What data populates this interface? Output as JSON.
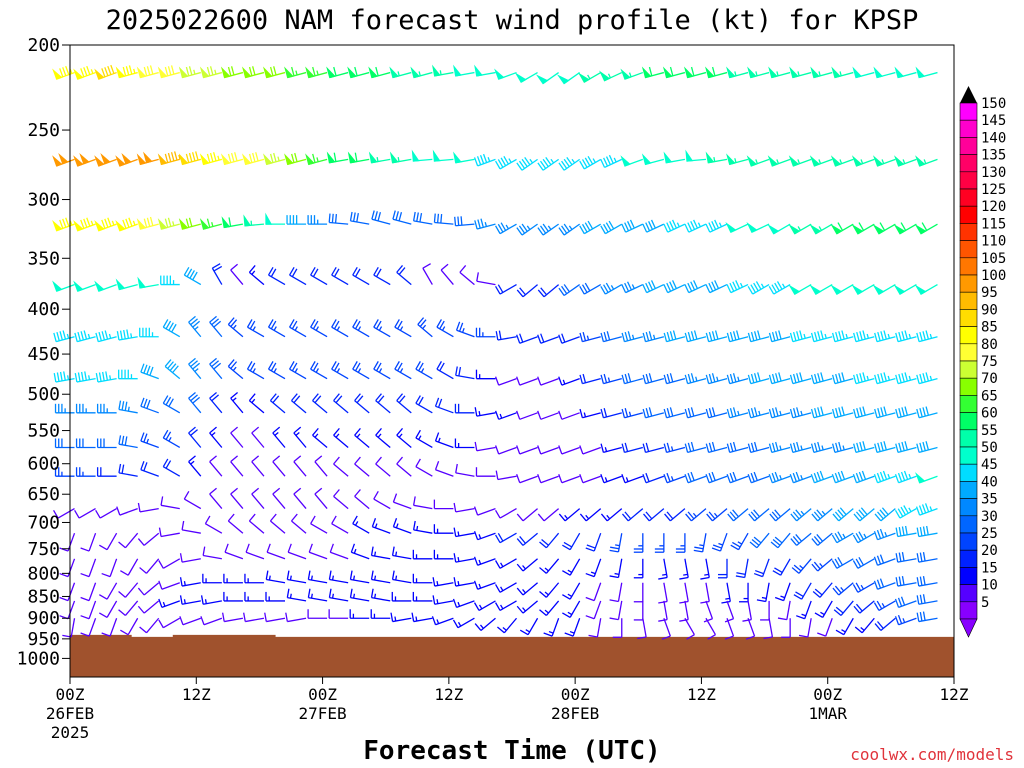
{
  "chart_data": {
    "type": "wind-barb time-height",
    "title": "2025022600 NAM forecast wind profile (kt) for KPSP",
    "xlabel": "Forecast Time (UTC)",
    "ylabel": "",
    "credit": "coolwx.com/models",
    "y_ticks": [
      "200",
      "250",
      "300",
      "350",
      "400",
      "450",
      "500",
      "550",
      "600",
      "650",
      "700",
      "750",
      "800",
      "850",
      "900",
      "950",
      "1000"
    ],
    "y_levels_hPa": [
      200,
      250,
      300,
      350,
      400,
      450,
      500,
      550,
      600,
      650,
      700,
      750,
      800,
      850,
      900,
      950,
      1000
    ],
    "y_scale": "log pressure (hPa), inverted",
    "ylim": [
      1050,
      200
    ],
    "x_ticks": [
      {
        "hour": 0,
        "line1": "00Z",
        "line2": "26FEB",
        "line3": "2025"
      },
      {
        "hour": 12,
        "line1": "12Z",
        "line2": "",
        "line3": ""
      },
      {
        "hour": 24,
        "line1": "00Z",
        "line2": "27FEB",
        "line3": ""
      },
      {
        "hour": 36,
        "line1": "12Z",
        "line2": "",
        "line3": ""
      },
      {
        "hour": 48,
        "line1": "00Z",
        "line2": "28FEB",
        "line3": ""
      },
      {
        "hour": 60,
        "line1": "12Z",
        "line2": "",
        "line3": ""
      },
      {
        "hour": 72,
        "line1": "00Z",
        "line2": "1MAR",
        "line3": ""
      },
      {
        "hour": 84,
        "line1": "12Z",
        "line2": "",
        "line3": ""
      }
    ],
    "xlim_hours": [
      0,
      84
    ],
    "barb_times_hours": [
      1,
      3,
      5,
      7,
      9,
      11,
      13,
      15,
      17,
      19,
      21,
      23,
      25,
      27,
      29,
      31,
      33,
      35,
      37,
      39,
      41,
      43,
      45,
      47,
      49,
      51,
      53,
      55,
      57,
      59,
      61,
      63,
      65,
      67,
      69,
      71,
      73,
      75,
      77,
      79,
      81,
      83
    ],
    "barb_levels_hPa": [
      215,
      270,
      320,
      375,
      430,
      480,
      525,
      575,
      620,
      675,
      720,
      770,
      820,
      860,
      900
    ],
    "speed_knots_by_level": [
      [
        86,
        86,
        88,
        84,
        82,
        80,
        76,
        74,
        72,
        70,
        68,
        66,
        64,
        62,
        60,
        58,
        56,
        55,
        54,
        52,
        50,
        50,
        50,
        50,
        52,
        54,
        56,
        56,
        58,
        58,
        58,
        58,
        56,
        56,
        56,
        54,
        54,
        54,
        52,
        52,
        52,
        52
      ],
      [
        98,
        98,
        100,
        100,
        98,
        94,
        90,
        86,
        82,
        78,
        74,
        70,
        66,
        62,
        60,
        56,
        54,
        52,
        50,
        48,
        46,
        44,
        44,
        44,
        44,
        46,
        46,
        48,
        48,
        50,
        52,
        54,
        54,
        56,
        56,
        56,
        56,
        56,
        56,
        56,
        56,
        56
      ],
      [
        84,
        84,
        84,
        84,
        80,
        76,
        70,
        64,
        58,
        54,
        48,
        42,
        36,
        32,
        30,
        30,
        30,
        30,
        30,
        32,
        34,
        36,
        36,
        36,
        36,
        38,
        40,
        40,
        42,
        44,
        44,
        46,
        48,
        50,
        52,
        54,
        56,
        58,
        60,
        60,
        60,
        60
      ],
      [
        50,
        50,
        50,
        50,
        48,
        46,
        40,
        20,
        10,
        15,
        20,
        20,
        20,
        20,
        20,
        20,
        20,
        10,
        12,
        10,
        10,
        20,
        20,
        20,
        30,
        30,
        34,
        36,
        38,
        40,
        40,
        42,
        44,
        44,
        46,
        48,
        48,
        50,
        50,
        50,
        52,
        52
      ],
      [
        46,
        46,
        46,
        44,
        44,
        40,
        36,
        30,
        25,
        25,
        25,
        25,
        25,
        25,
        25,
        25,
        25,
        25,
        25,
        25,
        25,
        20,
        20,
        20,
        20,
        25,
        30,
        34,
        36,
        38,
        38,
        40,
        40,
        42,
        42,
        44,
        44,
        44,
        46,
        46,
        46,
        46
      ],
      [
        44,
        44,
        44,
        44,
        42,
        40,
        36,
        30,
        26,
        25,
        25,
        25,
        25,
        25,
        25,
        25,
        25,
        25,
        20,
        20,
        15,
        10,
        10,
        10,
        15,
        20,
        25,
        28,
        30,
        32,
        34,
        36,
        36,
        38,
        40,
        40,
        42,
        42,
        44,
        44,
        46,
        46
      ],
      [
        34,
        34,
        34,
        34,
        32,
        30,
        28,
        20,
        15,
        15,
        20,
        20,
        20,
        20,
        20,
        20,
        20,
        20,
        20,
        20,
        15,
        15,
        10,
        10,
        10,
        15,
        20,
        25,
        28,
        30,
        30,
        32,
        34,
        34,
        36,
        36,
        38,
        38,
        40,
        40,
        42,
        42
      ],
      [
        28,
        28,
        28,
        28,
        26,
        24,
        20,
        15,
        10,
        10,
        15,
        15,
        15,
        15,
        15,
        15,
        15,
        15,
        15,
        15,
        10,
        10,
        10,
        10,
        10,
        10,
        15,
        20,
        22,
        25,
        28,
        30,
        30,
        32,
        34,
        34,
        36,
        36,
        38,
        38,
        40,
        40
      ],
      [
        24,
        24,
        22,
        22,
        20,
        18,
        15,
        10,
        10,
        10,
        10,
        10,
        10,
        10,
        10,
        10,
        10,
        10,
        10,
        10,
        10,
        10,
        10,
        10,
        10,
        10,
        15,
        15,
        20,
        25,
        28,
        30,
        30,
        32,
        34,
        36,
        38,
        40,
        42,
        44,
        46,
        48
      ],
      [
        10,
        10,
        10,
        10,
        10,
        10,
        10,
        10,
        10,
        10,
        10,
        10,
        10,
        10,
        10,
        10,
        10,
        10,
        10,
        10,
        10,
        10,
        10,
        10,
        15,
        15,
        15,
        20,
        20,
        20,
        25,
        25,
        30,
        30,
        32,
        34,
        36,
        38,
        40,
        42,
        44,
        46
      ],
      [
        10,
        10,
        10,
        10,
        10,
        10,
        10,
        10,
        10,
        10,
        10,
        10,
        10,
        10,
        15,
        15,
        15,
        15,
        15,
        15,
        15,
        20,
        20,
        20,
        20,
        20,
        25,
        25,
        25,
        25,
        25,
        25,
        25,
        30,
        30,
        30,
        32,
        34,
        36,
        36,
        38,
        38
      ],
      [
        10,
        10,
        10,
        10,
        10,
        10,
        10,
        10,
        10,
        10,
        10,
        10,
        10,
        10,
        15,
        15,
        15,
        15,
        15,
        15,
        15,
        15,
        15,
        15,
        15,
        15,
        15,
        15,
        15,
        15,
        15,
        20,
        20,
        20,
        20,
        25,
        25,
        28,
        30,
        30,
        32,
        32
      ],
      [
        10,
        10,
        10,
        10,
        10,
        10,
        15,
        15,
        15,
        15,
        15,
        15,
        15,
        15,
        15,
        15,
        15,
        15,
        15,
        15,
        15,
        15,
        15,
        15,
        15,
        10,
        10,
        10,
        10,
        10,
        10,
        15,
        15,
        15,
        15,
        20,
        20,
        25,
        25,
        28,
        30,
        30
      ],
      [
        10,
        10,
        10,
        10,
        10,
        15,
        15,
        15,
        15,
        15,
        15,
        15,
        15,
        15,
        15,
        15,
        15,
        15,
        15,
        15,
        15,
        15,
        15,
        15,
        15,
        10,
        10,
        10,
        10,
        10,
        10,
        10,
        10,
        10,
        10,
        15,
        15,
        20,
        20,
        25,
        28,
        30
      ],
      [
        10,
        10,
        10,
        10,
        10,
        10,
        10,
        10,
        10,
        10,
        10,
        10,
        10,
        10,
        15,
        15,
        15,
        15,
        15,
        15,
        15,
        15,
        15,
        15,
        15,
        10,
        10,
        10,
        10,
        10,
        10,
        10,
        10,
        10,
        10,
        10,
        10,
        15,
        15,
        20,
        25,
        30
      ]
    ],
    "direction_deg_from_by_level": [
      [
        250,
        250,
        250,
        255,
        255,
        255,
        255,
        255,
        255,
        255,
        255,
        255,
        255,
        255,
        255,
        255,
        255,
        255,
        260,
        260,
        260,
        250,
        240,
        235,
        235,
        240,
        245,
        250,
        255,
        255,
        255,
        255,
        255,
        255,
        255,
        255,
        255,
        255,
        255,
        255,
        255,
        255
      ],
      [
        250,
        250,
        250,
        250,
        255,
        255,
        255,
        255,
        255,
        255,
        255,
        255,
        255,
        260,
        260,
        260,
        260,
        265,
        265,
        260,
        250,
        240,
        235,
        235,
        235,
        240,
        245,
        250,
        255,
        260,
        265,
        260,
        255,
        250,
        250,
        250,
        250,
        250,
        250,
        250,
        250,
        250
      ],
      [
        250,
        250,
        250,
        250,
        255,
        255,
        255,
        255,
        260,
        265,
        270,
        270,
        270,
        275,
        280,
        285,
        285,
        280,
        275,
        265,
        255,
        240,
        235,
        235,
        235,
        240,
        240,
        245,
        245,
        245,
        245,
        245,
        245,
        245,
        240,
        240,
        240,
        240,
        240,
        240,
        240,
        240
      ],
      [
        250,
        250,
        250,
        255,
        260,
        270,
        300,
        330,
        320,
        310,
        300,
        300,
        300,
        300,
        300,
        300,
        310,
        330,
        320,
        310,
        280,
        240,
        230,
        230,
        235,
        240,
        240,
        245,
        245,
        245,
        245,
        245,
        245,
        240,
        240,
        240,
        240,
        240,
        240,
        240,
        240,
        240
      ],
      [
        255,
        255,
        255,
        260,
        270,
        300,
        320,
        320,
        310,
        300,
        300,
        300,
        300,
        300,
        300,
        300,
        300,
        310,
        300,
        290,
        270,
        260,
        250,
        250,
        250,
        255,
        255,
        255,
        255,
        255,
        255,
        255,
        255,
        255,
        255,
        255,
        255,
        255,
        255,
        255,
        255,
        255
      ],
      [
        260,
        260,
        260,
        270,
        290,
        310,
        320,
        320,
        310,
        300,
        300,
        300,
        300,
        300,
        300,
        300,
        300,
        300,
        300,
        280,
        270,
        250,
        250,
        250,
        250,
        255,
        255,
        255,
        255,
        255,
        255,
        255,
        255,
        255,
        255,
        255,
        255,
        255,
        255,
        255,
        255,
        255
      ],
      [
        270,
        270,
        270,
        280,
        290,
        300,
        320,
        320,
        320,
        310,
        310,
        310,
        310,
        310,
        310,
        310,
        310,
        300,
        290,
        270,
        260,
        250,
        250,
        250,
        250,
        255,
        255,
        255,
        255,
        255,
        255,
        255,
        255,
        255,
        255,
        255,
        255,
        255,
        255,
        255,
        255,
        255
      ],
      [
        270,
        270,
        270,
        280,
        290,
        300,
        320,
        320,
        320,
        320,
        320,
        320,
        310,
        310,
        310,
        310,
        310,
        300,
        290,
        270,
        260,
        250,
        250,
        250,
        250,
        250,
        255,
        255,
        255,
        255,
        255,
        255,
        255,
        255,
        255,
        255,
        255,
        255,
        255,
        255,
        255,
        255
      ],
      [
        270,
        270,
        270,
        280,
        290,
        300,
        320,
        320,
        320,
        320,
        320,
        320,
        320,
        310,
        310,
        310,
        310,
        300,
        290,
        280,
        270,
        260,
        250,
        250,
        250,
        250,
        250,
        250,
        250,
        250,
        250,
        250,
        250,
        250,
        250,
        250,
        250,
        250,
        250,
        250,
        250,
        250
      ],
      [
        240,
        240,
        240,
        250,
        260,
        280,
        300,
        320,
        320,
        320,
        320,
        320,
        320,
        310,
        310,
        300,
        290,
        280,
        270,
        260,
        250,
        240,
        230,
        230,
        230,
        230,
        230,
        230,
        230,
        230,
        230,
        230,
        230,
        230,
        230,
        230,
        230,
        230,
        230,
        230,
        240,
        250
      ],
      [
        200,
        200,
        210,
        220,
        230,
        260,
        280,
        300,
        310,
        310,
        310,
        310,
        300,
        300,
        300,
        290,
        290,
        280,
        270,
        260,
        250,
        240,
        230,
        220,
        210,
        200,
        190,
        180,
        180,
        180,
        190,
        200,
        210,
        220,
        220,
        230,
        230,
        240,
        240,
        250,
        260,
        260
      ],
      [
        200,
        200,
        200,
        210,
        220,
        240,
        260,
        280,
        290,
        290,
        290,
        290,
        290,
        290,
        290,
        280,
        280,
        270,
        270,
        260,
        250,
        240,
        230,
        220,
        210,
        200,
        190,
        180,
        170,
        170,
        170,
        180,
        190,
        200,
        210,
        220,
        230,
        240,
        240,
        250,
        260,
        260
      ],
      [
        200,
        200,
        210,
        220,
        230,
        250,
        260,
        270,
        270,
        270,
        280,
        280,
        280,
        280,
        280,
        280,
        280,
        270,
        260,
        260,
        250,
        240,
        230,
        220,
        210,
        200,
        190,
        180,
        170,
        170,
        170,
        170,
        180,
        190,
        200,
        210,
        220,
        230,
        240,
        250,
        260,
        260
      ],
      [
        200,
        200,
        210,
        220,
        230,
        250,
        260,
        260,
        270,
        270,
        270,
        280,
        280,
        280,
        280,
        280,
        270,
        270,
        260,
        250,
        240,
        240,
        230,
        220,
        210,
        200,
        190,
        180,
        170,
        170,
        160,
        160,
        170,
        180,
        190,
        200,
        210,
        220,
        230,
        240,
        250,
        260
      ],
      [
        190,
        200,
        200,
        210,
        220,
        240,
        250,
        250,
        260,
        260,
        260,
        260,
        270,
        270,
        270,
        270,
        260,
        260,
        250,
        240,
        230,
        220,
        210,
        200,
        200,
        190,
        180,
        170,
        160,
        150,
        150,
        160,
        160,
        170,
        180,
        190,
        200,
        210,
        220,
        230,
        250,
        260
      ]
    ],
    "colorbar": {
      "labels": [
        "150",
        "145",
        "140",
        "135",
        "130",
        "125",
        "120",
        "115",
        "110",
        "105",
        "100",
        "95",
        "90",
        "85",
        "80",
        "75",
        "70",
        "65",
        "60",
        "55",
        "50",
        "45",
        "40",
        "35",
        "30",
        "25",
        "20",
        "15",
        "10",
        "5"
      ],
      "colors": [
        "#ff00ff",
        "#ff00cc",
        "#ff0099",
        "#ff0066",
        "#ff0044",
        "#ff0022",
        "#ff0000",
        "#ff3300",
        "#ff5500",
        "#ff7700",
        "#ff9900",
        "#ffbb00",
        "#ffdd00",
        "#ffff00",
        "#ffff33",
        "#ccff33",
        "#88ff00",
        "#33ff33",
        "#00ff66",
        "#00ffaa",
        "#00ffcc",
        "#00ddff",
        "#00aaff",
        "#0088ff",
        "#0066ff",
        "#0044ff",
        "#0022ff",
        "#0000ff",
        "#5500ff",
        "#8800ff"
      ]
    },
    "terrain_color": "#a0522d"
  }
}
